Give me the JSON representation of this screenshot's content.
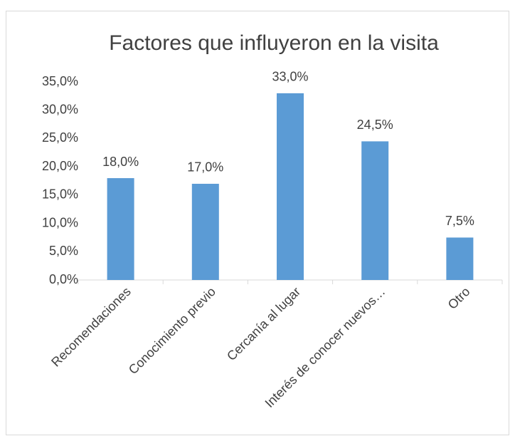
{
  "chart_data": {
    "type": "bar",
    "title": "Factores que influyeron en la visita",
    "categories": [
      "Recomendaciones",
      "Conocimiento previo",
      "Cercanía al lugar",
      "Interés de conocer nuevos…",
      "Otro"
    ],
    "values": [
      18,
      17,
      33,
      24.5,
      7.5
    ],
    "value_labels": [
      "18,0%",
      "17,0%",
      "33,0%",
      "24,5%",
      "7,5%"
    ],
    "color": "#5b9bd5",
    "ylim": [
      0,
      35
    ],
    "yticks": [
      {
        "value": 0,
        "label": "0,0%"
      },
      {
        "value": 5,
        "label": "5,0%"
      },
      {
        "value": 10,
        "label": "10,0%"
      },
      {
        "value": 15,
        "label": "15,0%"
      },
      {
        "value": 20,
        "label": "20,0%"
      },
      {
        "value": 25,
        "label": "25,0%"
      },
      {
        "value": 30,
        "label": "30,0%"
      },
      {
        "value": 35,
        "label": "35,0%"
      }
    ],
    "grid": false
  }
}
